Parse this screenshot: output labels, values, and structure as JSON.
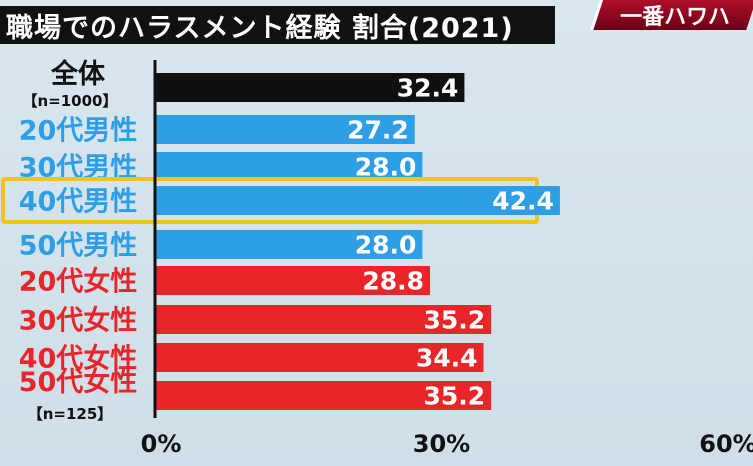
{
  "title": "職場でのハラスメント経験 割合(2021)",
  "corner_tag": "一番ハワハ",
  "colors": {
    "overall": "#101010",
    "male": "#2e9ee6",
    "female": "#e8262a",
    "highlight": "#f0c419"
  },
  "chart_data": {
    "type": "bar",
    "orientation": "horizontal",
    "title": "職場でのハラスメント経験 割合(2021)",
    "categories": [
      "全体",
      "20代男性",
      "30代男性",
      "40代男性",
      "50代男性",
      "20代女性",
      "30代女性",
      "40代女性",
      "50代女性"
    ],
    "sublabels": [
      "【n=1000】",
      "",
      "",
      "",
      "",
      "",
      "",
      "",
      "【n=125】"
    ],
    "values": [
      32.4,
      27.2,
      28.0,
      42.4,
      28.0,
      28.8,
      35.2,
      34.4,
      35.2
    ],
    "value_labels": [
      "32.4",
      "27.2",
      "28.0",
      "42.4",
      "28.0",
      "28.8",
      "35.2",
      "34.4",
      "35.2"
    ],
    "groups": [
      "overall",
      "male",
      "male",
      "male",
      "male",
      "female",
      "female",
      "female",
      "female"
    ],
    "highlight_index": 3,
    "xlim": [
      0,
      60
    ],
    "xticks": [
      0,
      30,
      60
    ],
    "xtick_labels": [
      "0%",
      "30%",
      "60%"
    ],
    "grid": false,
    "legend": "none"
  }
}
